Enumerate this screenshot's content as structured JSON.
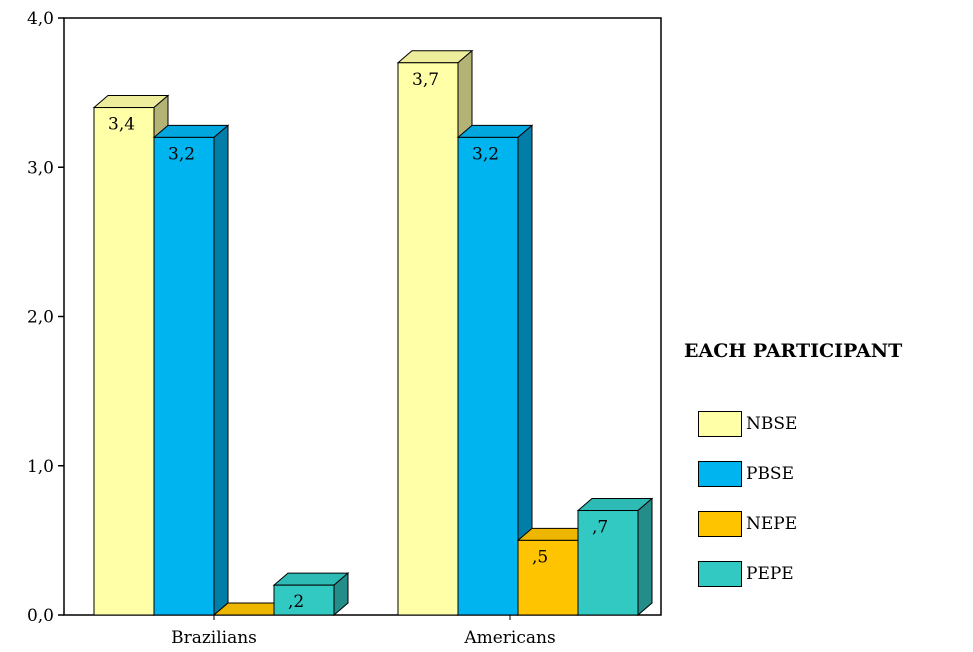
{
  "chart_data": {
    "type": "bar",
    "categories": [
      "Brazilians",
      "Americans"
    ],
    "series": [
      {
        "name": "NBSE",
        "color": "#ffffa8",
        "values": [
          3.4,
          3.7
        ],
        "labels": [
          "3,4",
          "3,7"
        ]
      },
      {
        "name": "PBSE",
        "color": "#00b4f0",
        "values": [
          3.2,
          3.2
        ],
        "labels": [
          "3,2",
          "3,2"
        ]
      },
      {
        "name": "NEPE",
        "color": "#ffc400",
        "values": [
          0.0,
          0.5
        ],
        "labels": [
          "",
          ",5"
        ]
      },
      {
        "name": "PEPE",
        "color": "#33c9c3",
        "values": [
          0.2,
          0.7
        ],
        "labels": [
          ",2",
          ",7"
        ]
      }
    ],
    "ylim": [
      0,
      4
    ],
    "yticks": [
      0,
      1,
      2,
      3,
      4
    ],
    "ytick_labels": [
      "0,0",
      "1,0",
      "2,0",
      "3,0",
      "4,0"
    ],
    "legend_title": "EACH PARTICIPANT",
    "legend_position": "right",
    "grid": false,
    "style": "3d"
  }
}
